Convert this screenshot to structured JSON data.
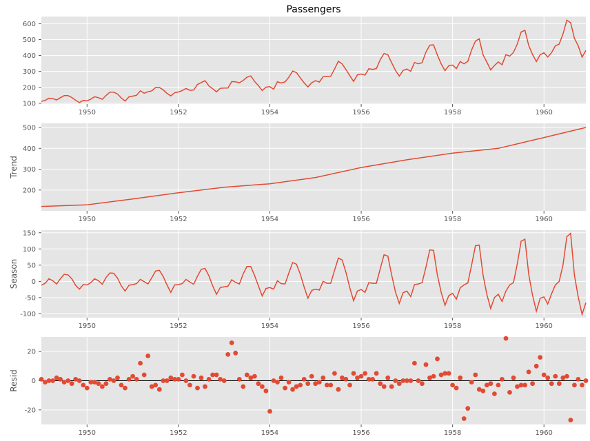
{
  "chart_data": [
    {
      "type": "line",
      "title": "Passengers",
      "ylabel": "",
      "xlim": [
        1949.0,
        1960.917
      ],
      "ylim": [
        95,
        645
      ],
      "x_ticks": [
        1950,
        1952,
        1954,
        1956,
        1958,
        1960
      ],
      "y_ticks": [
        100,
        200,
        300,
        400,
        500,
        600
      ],
      "grid": true,
      "color": "#E24A33",
      "x_start": 1949.0,
      "x_step": 0.083333,
      "values": [
        112,
        118,
        132,
        129,
        121,
        135,
        148,
        148,
        136,
        119,
        104,
        118,
        115,
        126,
        141,
        135,
        125,
        149,
        170,
        170,
        158,
        133,
        114,
        140,
        145,
        150,
        178,
        163,
        172,
        178,
        199,
        199,
        184,
        162,
        146,
        166,
        171,
        180,
        193,
        181,
        183,
        218,
        230,
        242,
        209,
        191,
        172,
        194,
        196,
        196,
        236,
        235,
        229,
        243,
        264,
        272,
        237,
        211,
        180,
        201,
        204,
        188,
        235,
        227,
        234,
        264,
        302,
        293,
        259,
        229,
        203,
        229,
        242,
        233,
        267,
        269,
        270,
        315,
        364,
        347,
        312,
        274,
        237,
        278,
        284,
        277,
        317,
        313,
        318,
        374,
        413,
        405,
        355,
        306,
        271,
        306,
        315,
        301,
        356,
        348,
        355,
        422,
        465,
        467,
        404,
        347,
        305,
        336,
        340,
        318,
        362,
        348,
        363,
        435,
        491,
        505,
        404,
        359,
        310,
        337,
        360,
        342,
        406,
        396,
        420,
        472,
        548,
        559,
        463,
        407,
        362,
        405,
        417,
        391,
        419,
        461,
        472,
        535,
        622,
        606,
        508,
        461,
        390,
        432
      ]
    },
    {
      "type": "line",
      "title": "",
      "ylabel": "Trend",
      "xlim": [
        1949.0,
        1960.917
      ],
      "ylim": [
        100,
        520
      ],
      "x_ticks": [
        1950,
        1952,
        1954,
        1956,
        1958,
        1960
      ],
      "y_ticks": [
        200,
        300,
        400,
        500
      ],
      "grid": true,
      "color": "#E24A33",
      "x": [
        1949.0,
        1950.0,
        1951.0,
        1952.0,
        1953.0,
        1954.0,
        1955.0,
        1956.0,
        1957.0,
        1958.0,
        1959.0,
        1960.0,
        1960.917
      ],
      "values": [
        121,
        129,
        157,
        187,
        213,
        230,
        260,
        308,
        345,
        377,
        400,
        452,
        500
      ]
    },
    {
      "type": "line",
      "title": "",
      "ylabel": "Season",
      "xlim": [
        1949.0,
        1960.917
      ],
      "ylim": [
        -112,
        158
      ],
      "x_ticks": [
        1950,
        1952,
        1954,
        1956,
        1958,
        1960
      ],
      "y_ticks": [
        -100,
        -50,
        0,
        50,
        100,
        150
      ],
      "grid": true,
      "color": "#E24A33",
      "x_start": 1949.0,
      "x_step": 0.083333,
      "values": [
        -12,
        -6,
        8,
        2,
        -8,
        8,
        22,
        20,
        8,
        -12,
        -24,
        -10,
        -11,
        -4,
        8,
        2,
        -9,
        12,
        26,
        25,
        10,
        -14,
        -30,
        -12,
        -10,
        -7,
        6,
        -1,
        -8,
        11,
        32,
        34,
        15,
        -11,
        -34,
        -11,
        -10,
        -7,
        6,
        -2,
        -9,
        16,
        37,
        40,
        17,
        -14,
        -40,
        -19,
        -17,
        -15,
        5,
        -3,
        -8,
        23,
        46,
        46,
        18,
        -14,
        -45,
        -22,
        -19,
        -24,
        2,
        -7,
        -8,
        26,
        58,
        53,
        22,
        -17,
        -52,
        -28,
        -24,
        -27,
        0,
        -6,
        -6,
        34,
        72,
        66,
        28,
        -20,
        -60,
        -30,
        -25,
        -34,
        -4,
        -6,
        -6,
        39,
        82,
        78,
        20,
        -33,
        -68,
        -35,
        -30,
        -47,
        -10,
        -8,
        -4,
        44,
        97,
        96,
        20,
        -34,
        -74,
        -44,
        -37,
        -55,
        -20,
        -11,
        -5,
        50,
        110,
        112,
        20,
        -40,
        -84,
        -50,
        -40,
        -62,
        -30,
        -11,
        -4,
        54,
        124,
        130,
        22,
        -43,
        -92,
        -52,
        -48,
        -70,
        -38,
        -11,
        0,
        50,
        138,
        148,
        19,
        -48,
        -102,
        -66
      ]
    },
    {
      "type": "scatter",
      "title": "",
      "ylabel": "Resid",
      "xlim": [
        1949.0,
        1960.917
      ],
      "ylim": [
        -30,
        30
      ],
      "x_ticks": [
        1950,
        1952,
        1954,
        1956,
        1958,
        1960
      ],
      "y_ticks": [
        -20,
        0,
        20
      ],
      "grid": true,
      "baseline": 0,
      "color": "#E24A33",
      "x_start": 1949.0,
      "x_step": 0.083333,
      "values": [
        1,
        -1,
        0,
        0,
        2,
        1,
        -1,
        0,
        -2,
        1,
        0,
        -3,
        -5,
        -1,
        -1,
        -2,
        -4,
        -2,
        1,
        0,
        2,
        -3,
        -5,
        1,
        3,
        1,
        12,
        4,
        17,
        -4,
        -3,
        -6,
        0,
        0,
        2,
        1,
        1,
        4,
        0,
        -3,
        3,
        -5,
        2,
        -4,
        1,
        4,
        4,
        1,
        0,
        18,
        26,
        19,
        1,
        -4,
        4,
        2,
        3,
        -2,
        -4,
        -7,
        -21,
        0,
        -1,
        2,
        -5,
        -1,
        -6,
        -4,
        -3,
        1,
        -2,
        3,
        -2,
        -1,
        2,
        -3,
        -3,
        5,
        -6,
        2,
        1,
        -3,
        5,
        2,
        3,
        5,
        1,
        1,
        5,
        -2,
        -4,
        2,
        -4,
        0,
        -2,
        0,
        0,
        0,
        12,
        0,
        -2,
        11,
        2,
        3,
        15,
        4,
        5,
        5,
        -3,
        -5,
        2,
        -26,
        -19,
        -1,
        4,
        -6,
        -7,
        -3,
        -2,
        -9,
        -3,
        1,
        29,
        -8,
        2,
        -4,
        -3,
        -3,
        6,
        -2,
        10,
        16,
        4,
        2,
        -2,
        3,
        -2,
        2,
        3,
        -27,
        -3,
        1,
        -3,
        0
      ]
    }
  ]
}
